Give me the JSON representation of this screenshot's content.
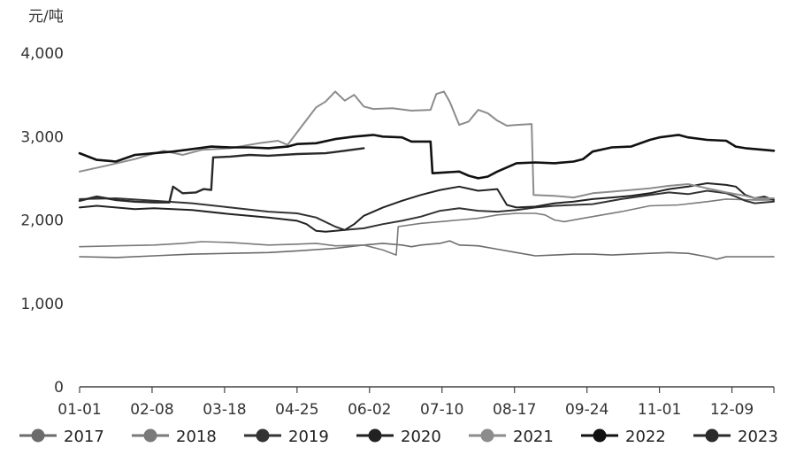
{
  "chart_data": {
    "type": "line",
    "unit_label": "元/吨",
    "ylim": [
      0,
      4000
    ],
    "y_ticks": [
      "0",
      "1,000",
      "2,000",
      "3,000",
      "4,000"
    ],
    "y_tick_values": [
      0,
      1000,
      2000,
      3000,
      4000
    ],
    "x_day_range": [
      1,
      365
    ],
    "x_ticks": [
      "01-01",
      "02-08",
      "03-18",
      "04-25",
      "06-02",
      "07-10",
      "08-17",
      "09-24",
      "11-01",
      "12-09"
    ],
    "x_tick_days": [
      1,
      39,
      77,
      115,
      153,
      191,
      229,
      267,
      305,
      343
    ],
    "grid": false,
    "legend_position": "bottom",
    "series": [
      {
        "name": "2017",
        "color": "#6b6b6b",
        "width": 1.6,
        "points": [
          [
            1,
            1560
          ],
          [
            20,
            1550
          ],
          [
            40,
            1570
          ],
          [
            60,
            1590
          ],
          [
            80,
            1600
          ],
          [
            100,
            1610
          ],
          [
            115,
            1630
          ],
          [
            135,
            1660
          ],
          [
            150,
            1700
          ],
          [
            160,
            1720
          ],
          [
            170,
            1700
          ],
          [
            175,
            1680
          ],
          [
            180,
            1700
          ],
          [
            185,
            1710
          ],
          [
            190,
            1720
          ],
          [
            195,
            1750
          ],
          [
            200,
            1700
          ],
          [
            210,
            1690
          ],
          [
            220,
            1650
          ],
          [
            230,
            1610
          ],
          [
            240,
            1570
          ],
          [
            250,
            1580
          ],
          [
            260,
            1590
          ],
          [
            270,
            1590
          ],
          [
            280,
            1580
          ],
          [
            290,
            1590
          ],
          [
            300,
            1600
          ],
          [
            310,
            1610
          ],
          [
            320,
            1600
          ],
          [
            330,
            1560
          ],
          [
            335,
            1530
          ],
          [
            340,
            1560
          ],
          [
            350,
            1560
          ],
          [
            365,
            1560
          ]
        ]
      },
      {
        "name": "2018",
        "color": "#7a7a7a",
        "width": 1.6,
        "points": [
          [
            1,
            1680
          ],
          [
            20,
            1690
          ],
          [
            40,
            1700
          ],
          [
            55,
            1720
          ],
          [
            65,
            1740
          ],
          [
            80,
            1730
          ],
          [
            100,
            1700
          ],
          [
            115,
            1710
          ],
          [
            125,
            1720
          ],
          [
            135,
            1690
          ],
          [
            150,
            1700
          ],
          [
            160,
            1640
          ],
          [
            167,
            1580
          ],
          [
            168,
            1920
          ],
          [
            180,
            1960
          ],
          [
            190,
            1980
          ],
          [
            200,
            2000
          ],
          [
            210,
            2020
          ],
          [
            220,
            2060
          ],
          [
            230,
            2080
          ],
          [
            240,
            2080
          ],
          [
            245,
            2060
          ],
          [
            250,
            2000
          ],
          [
            255,
            1980
          ],
          [
            265,
            2020
          ],
          [
            275,
            2060
          ],
          [
            285,
            2100
          ],
          [
            300,
            2170
          ],
          [
            315,
            2180
          ],
          [
            330,
            2220
          ],
          [
            340,
            2250
          ],
          [
            355,
            2240
          ],
          [
            365,
            2240
          ]
        ]
      },
      {
        "name": "2019",
        "color": "#333333",
        "width": 2.0,
        "points": [
          [
            1,
            2250
          ],
          [
            20,
            2260
          ],
          [
            40,
            2230
          ],
          [
            60,
            2200
          ],
          [
            80,
            2150
          ],
          [
            100,
            2100
          ],
          [
            115,
            2080
          ],
          [
            125,
            2030
          ],
          [
            135,
            1920
          ],
          [
            140,
            1880
          ],
          [
            150,
            1900
          ],
          [
            160,
            1950
          ],
          [
            170,
            1990
          ],
          [
            180,
            2040
          ],
          [
            190,
            2110
          ],
          [
            200,
            2140
          ],
          [
            210,
            2110
          ],
          [
            220,
            2100
          ],
          [
            230,
            2120
          ],
          [
            240,
            2150
          ],
          [
            250,
            2170
          ],
          [
            260,
            2180
          ],
          [
            270,
            2190
          ],
          [
            285,
            2250
          ],
          [
            300,
            2300
          ],
          [
            310,
            2330
          ],
          [
            320,
            2310
          ],
          [
            330,
            2350
          ],
          [
            340,
            2320
          ],
          [
            345,
            2280
          ],
          [
            350,
            2230
          ],
          [
            355,
            2200
          ],
          [
            365,
            2220
          ]
        ]
      },
      {
        "name": "2020",
        "color": "#222222",
        "width": 2.0,
        "points": [
          [
            1,
            2150
          ],
          [
            10,
            2170
          ],
          [
            20,
            2150
          ],
          [
            30,
            2130
          ],
          [
            40,
            2140
          ],
          [
            60,
            2120
          ],
          [
            80,
            2070
          ],
          [
            100,
            2030
          ],
          [
            115,
            1990
          ],
          [
            120,
            1950
          ],
          [
            125,
            1870
          ],
          [
            130,
            1860
          ],
          [
            140,
            1880
          ],
          [
            145,
            1950
          ],
          [
            150,
            2050
          ],
          [
            160,
            2150
          ],
          [
            170,
            2230
          ],
          [
            180,
            2300
          ],
          [
            190,
            2360
          ],
          [
            200,
            2400
          ],
          [
            210,
            2350
          ],
          [
            220,
            2370
          ],
          [
            225,
            2180
          ],
          [
            230,
            2150
          ],
          [
            240,
            2160
          ],
          [
            250,
            2200
          ],
          [
            260,
            2220
          ],
          [
            270,
            2250
          ],
          [
            280,
            2270
          ],
          [
            290,
            2290
          ],
          [
            300,
            2320
          ],
          [
            310,
            2370
          ],
          [
            320,
            2400
          ],
          [
            330,
            2440
          ],
          [
            340,
            2420
          ],
          [
            345,
            2400
          ],
          [
            350,
            2300
          ],
          [
            355,
            2260
          ],
          [
            360,
            2280
          ],
          [
            365,
            2240
          ]
        ]
      },
      {
        "name": "2021",
        "color": "#8c8c8c",
        "width": 2.0,
        "points": [
          [
            1,
            2580
          ],
          [
            15,
            2650
          ],
          [
            30,
            2730
          ],
          [
            45,
            2830
          ],
          [
            55,
            2780
          ],
          [
            65,
            2840
          ],
          [
            80,
            2860
          ],
          [
            95,
            2920
          ],
          [
            105,
            2950
          ],
          [
            110,
            2900
          ],
          [
            115,
            3050
          ],
          [
            125,
            3350
          ],
          [
            130,
            3420
          ],
          [
            135,
            3540
          ],
          [
            140,
            3430
          ],
          [
            145,
            3500
          ],
          [
            150,
            3360
          ],
          [
            155,
            3330
          ],
          [
            165,
            3340
          ],
          [
            175,
            3310
          ],
          [
            185,
            3320
          ],
          [
            188,
            3510
          ],
          [
            192,
            3540
          ],
          [
            195,
            3420
          ],
          [
            200,
            3140
          ],
          [
            205,
            3180
          ],
          [
            210,
            3320
          ],
          [
            215,
            3280
          ],
          [
            220,
            3190
          ],
          [
            225,
            3130
          ],
          [
            230,
            3140
          ],
          [
            238,
            3150
          ],
          [
            239,
            2300
          ],
          [
            250,
            2290
          ],
          [
            260,
            2270
          ],
          [
            270,
            2320
          ],
          [
            280,
            2340
          ],
          [
            290,
            2360
          ],
          [
            300,
            2380
          ],
          [
            310,
            2410
          ],
          [
            320,
            2430
          ],
          [
            330,
            2380
          ],
          [
            340,
            2330
          ],
          [
            350,
            2290
          ],
          [
            355,
            2260
          ],
          [
            365,
            2260
          ]
        ]
      },
      {
        "name": "2022",
        "color": "#111111",
        "width": 2.6,
        "points": [
          [
            1,
            2800
          ],
          [
            10,
            2720
          ],
          [
            20,
            2700
          ],
          [
            30,
            2780
          ],
          [
            40,
            2800
          ],
          [
            50,
            2820
          ],
          [
            60,
            2850
          ],
          [
            70,
            2880
          ],
          [
            80,
            2870
          ],
          [
            90,
            2870
          ],
          [
            100,
            2860
          ],
          [
            110,
            2880
          ],
          [
            115,
            2910
          ],
          [
            125,
            2920
          ],
          [
            135,
            2970
          ],
          [
            145,
            3000
          ],
          [
            155,
            3020
          ],
          [
            160,
            3000
          ],
          [
            170,
            2990
          ],
          [
            175,
            2940
          ],
          [
            185,
            2940
          ],
          [
            186,
            2560
          ],
          [
            200,
            2580
          ],
          [
            205,
            2530
          ],
          [
            210,
            2500
          ],
          [
            215,
            2520
          ],
          [
            220,
            2580
          ],
          [
            230,
            2680
          ],
          [
            240,
            2690
          ],
          [
            250,
            2680
          ],
          [
            260,
            2700
          ],
          [
            265,
            2730
          ],
          [
            270,
            2820
          ],
          [
            280,
            2870
          ],
          [
            290,
            2880
          ],
          [
            300,
            2960
          ],
          [
            305,
            2990
          ],
          [
            315,
            3020
          ],
          [
            320,
            2990
          ],
          [
            330,
            2960
          ],
          [
            340,
            2950
          ],
          [
            345,
            2880
          ],
          [
            350,
            2860
          ],
          [
            360,
            2840
          ],
          [
            365,
            2830
          ]
        ]
      },
      {
        "name": "2023",
        "color": "#2a2a2a",
        "width": 2.4,
        "points": [
          [
            1,
            2230
          ],
          [
            10,
            2280
          ],
          [
            20,
            2240
          ],
          [
            30,
            2220
          ],
          [
            40,
            2210
          ],
          [
            48,
            2210
          ],
          [
            50,
            2400
          ],
          [
            55,
            2320
          ],
          [
            62,
            2330
          ],
          [
            66,
            2370
          ],
          [
            70,
            2360
          ],
          [
            71,
            2750
          ],
          [
            80,
            2760
          ],
          [
            90,
            2780
          ],
          [
            100,
            2770
          ],
          [
            115,
            2790
          ],
          [
            130,
            2800
          ],
          [
            140,
            2830
          ],
          [
            150,
            2860
          ]
        ]
      }
    ]
  }
}
